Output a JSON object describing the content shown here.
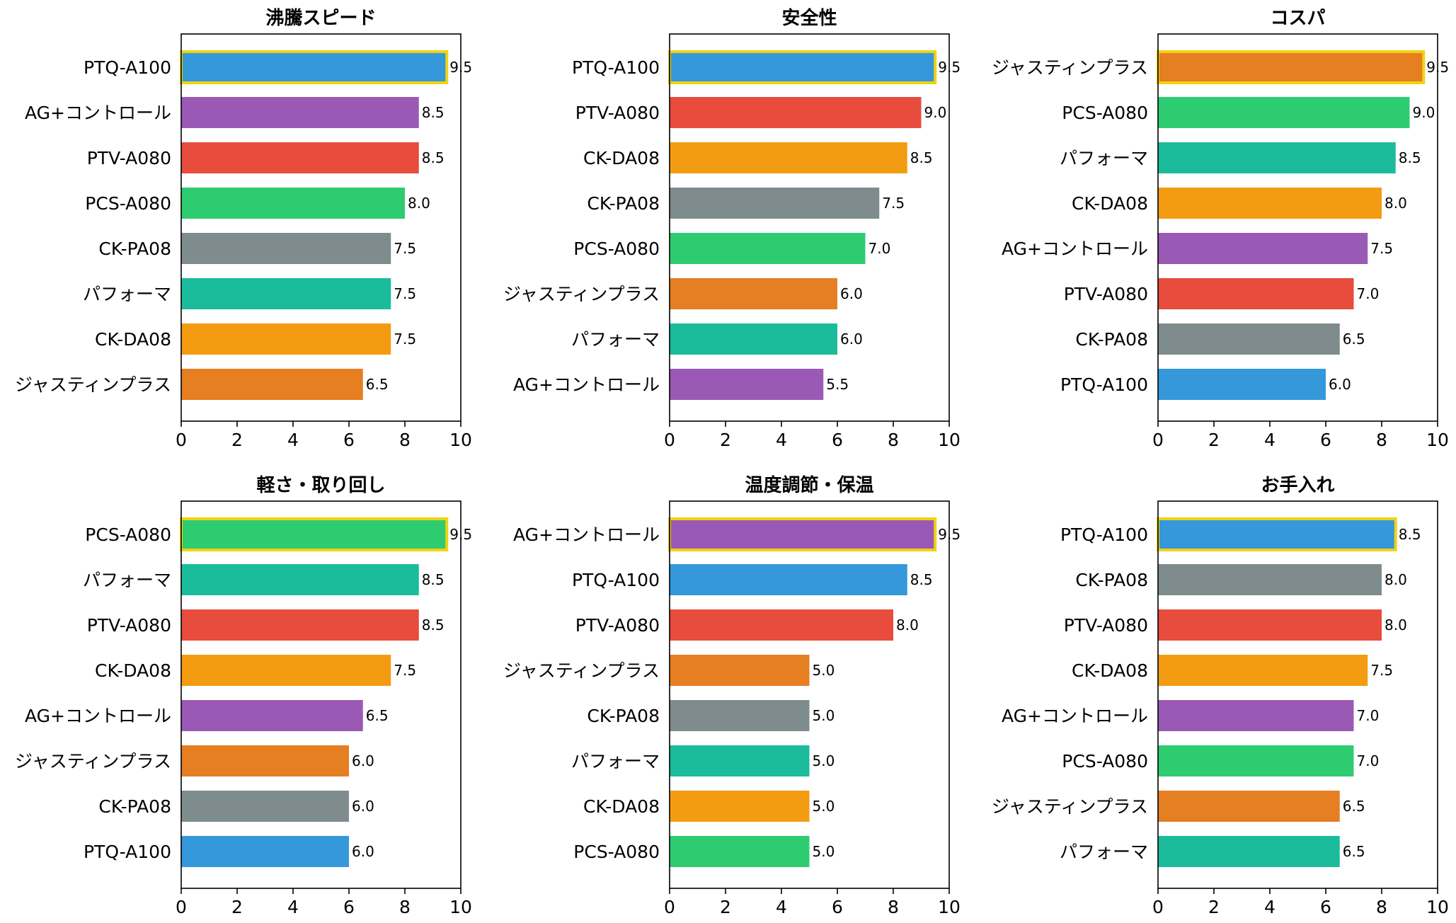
{
  "chart_data": [
    {
      "type": "bar",
      "orientation": "horizontal",
      "title": "沸騰スピード",
      "categories": [
        "PTQ-A100",
        "AG+コントロール",
        "PTV-A080",
        "PCS-A080",
        "CK-PA08",
        "パフォーマ",
        "CK-DA08",
        "ジャスティンプラス"
      ],
      "values": [
        9.5,
        8.5,
        8.5,
        8.0,
        7.5,
        7.5,
        7.5,
        6.5
      ],
      "labels": [
        "9.5",
        "8.5",
        "8.5",
        "8.0",
        "7.5",
        "7.5",
        "7.5",
        "6.5"
      ],
      "xlim": [
        0,
        10
      ],
      "xticks": [
        "0",
        "2",
        "4",
        "6",
        "8",
        "10"
      ],
      "highlight": "PTQ-A100"
    },
    {
      "type": "bar",
      "orientation": "horizontal",
      "title": "安全性",
      "categories": [
        "PTQ-A100",
        "PTV-A080",
        "CK-DA08",
        "CK-PA08",
        "PCS-A080",
        "ジャスティンプラス",
        "パフォーマ",
        "AG+コントロール"
      ],
      "values": [
        9.5,
        9.0,
        8.5,
        7.5,
        7.0,
        6.0,
        6.0,
        5.5
      ],
      "labels": [
        "9.5",
        "9.0",
        "8.5",
        "7.5",
        "7.0",
        "6.0",
        "6.0",
        "5.5"
      ],
      "xlim": [
        0,
        10
      ],
      "xticks": [
        "0",
        "2",
        "4",
        "6",
        "8",
        "10"
      ],
      "highlight": "PTQ-A100"
    },
    {
      "type": "bar",
      "orientation": "horizontal",
      "title": "コスパ",
      "categories": [
        "ジャスティンプラス",
        "PCS-A080",
        "パフォーマ",
        "CK-DA08",
        "AG+コントロール",
        "PTV-A080",
        "CK-PA08",
        "PTQ-A100"
      ],
      "values": [
        9.5,
        9.0,
        8.5,
        8.0,
        7.5,
        7.0,
        6.5,
        6.0
      ],
      "labels": [
        "9.5",
        "9.0",
        "8.5",
        "8.0",
        "7.5",
        "7.0",
        "6.5",
        "6.0"
      ],
      "xlim": [
        0,
        10
      ],
      "xticks": [
        "0",
        "2",
        "4",
        "6",
        "8",
        "10"
      ],
      "highlight": "ジャスティンプラス"
    },
    {
      "type": "bar",
      "orientation": "horizontal",
      "title": "軽さ・取り回し",
      "categories": [
        "PCS-A080",
        "パフォーマ",
        "PTV-A080",
        "CK-DA08",
        "AG+コントロール",
        "ジャスティンプラス",
        "CK-PA08",
        "PTQ-A100"
      ],
      "values": [
        9.5,
        8.5,
        8.5,
        7.5,
        6.5,
        6.0,
        6.0,
        6.0
      ],
      "labels": [
        "9.5",
        "8.5",
        "8.5",
        "7.5",
        "6.5",
        "6.0",
        "6.0",
        "6.0"
      ],
      "xlim": [
        0,
        10
      ],
      "xticks": [
        "0",
        "2",
        "4",
        "6",
        "8",
        "10"
      ],
      "highlight": "PCS-A080"
    },
    {
      "type": "bar",
      "orientation": "horizontal",
      "title": "温度調節・保温",
      "categories": [
        "AG+コントロール",
        "PTQ-A100",
        "PTV-A080",
        "ジャスティンプラス",
        "CK-PA08",
        "パフォーマ",
        "CK-DA08",
        "PCS-A080"
      ],
      "values": [
        9.5,
        8.5,
        8.0,
        5.0,
        5.0,
        5.0,
        5.0,
        5.0
      ],
      "labels": [
        "9.5",
        "8.5",
        "8.0",
        "5.0",
        "5.0",
        "5.0",
        "5.0",
        "5.0"
      ],
      "xlim": [
        0,
        10
      ],
      "xticks": [
        "0",
        "2",
        "4",
        "6",
        "8",
        "10"
      ],
      "highlight": "AG+コントロール"
    },
    {
      "type": "bar",
      "orientation": "horizontal",
      "title": "お手入れ",
      "categories": [
        "PTQ-A100",
        "CK-PA08",
        "PTV-A080",
        "CK-DA08",
        "AG+コントロール",
        "PCS-A080",
        "ジャスティンプラス",
        "パフォーマ"
      ],
      "values": [
        8.5,
        8.0,
        8.0,
        7.5,
        7.0,
        7.0,
        6.5,
        6.5
      ],
      "labels": [
        "8.5",
        "8.0",
        "8.0",
        "7.5",
        "7.0",
        "7.0",
        "6.5",
        "6.5"
      ],
      "xlim": [
        0,
        10
      ],
      "xticks": [
        "0",
        "2",
        "4",
        "6",
        "8",
        "10"
      ],
      "highlight": "PTQ-A100"
    }
  ],
  "colors": {
    "PTQ-A100": "#3498db",
    "AG+コントロール": "#9b59b6",
    "PTV-A080": "#e74c3c",
    "PCS-A080": "#2ecc71",
    "CK-PA08": "#7f8c8d",
    "パフォーマ": "#1abc9c",
    "CK-DA08": "#f39c12",
    "ジャスティンプラス": "#e67e22",
    "highlight_border": "#f1d312",
    "axis": "#000000"
  }
}
